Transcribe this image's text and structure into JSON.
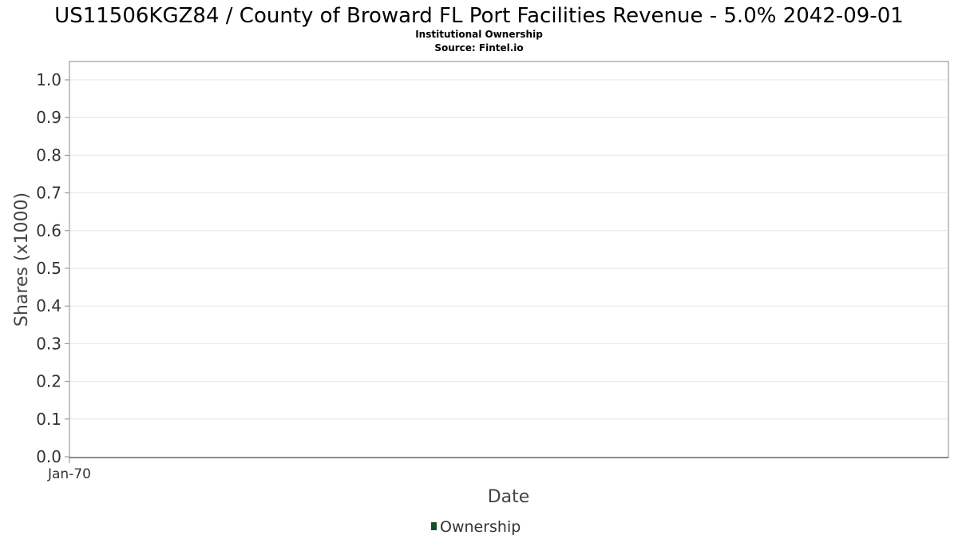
{
  "chart_data": {
    "type": "line",
    "title": "US11506KGZ84 / County of Broward FL Port Facilities Revenue - 5.0% 2042-09-01",
    "subtitle": "Institutional Ownership",
    "source": "Source: Fintel.io",
    "xlabel": "Date",
    "ylabel": "Shares (x1000)",
    "ylim": [
      0,
      1.0
    ],
    "y_ticks": [
      "0.0",
      "0.1",
      "0.2",
      "0.3",
      "0.4",
      "0.5",
      "0.6",
      "0.7",
      "0.8",
      "0.9",
      "1.0"
    ],
    "x_ticks": [
      "Jan-70"
    ],
    "grid": true,
    "legend_position": "bottom-center",
    "series": [
      {
        "name": "Ownership",
        "color": "#1d4a2a",
        "x": [],
        "values": []
      }
    ]
  }
}
